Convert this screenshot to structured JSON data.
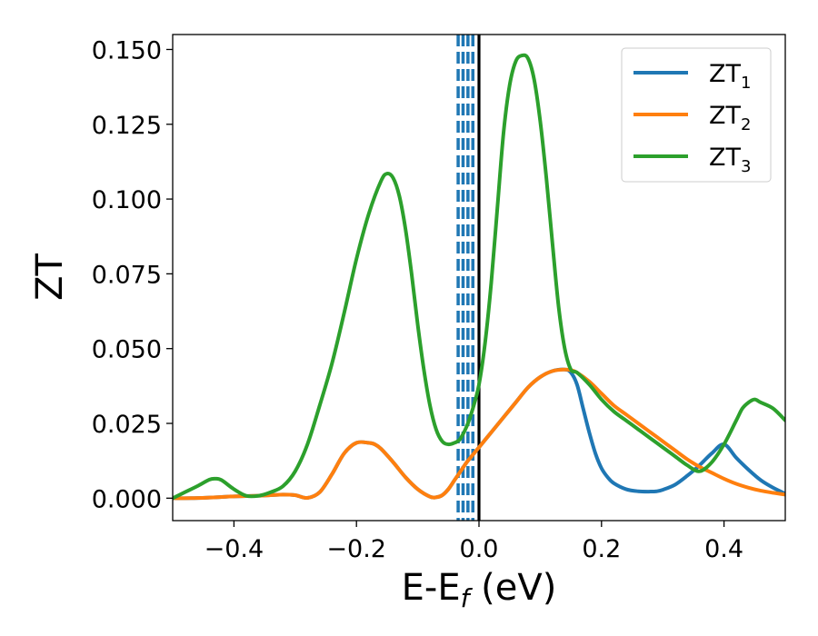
{
  "chart_data": {
    "type": "line",
    "xlabel": {
      "main": "E-E",
      "sub": "f",
      "tail": " (eV)"
    },
    "ylabel": "ZT",
    "xlim": [
      -0.5,
      0.5
    ],
    "ylim": [
      -0.0075,
      0.155
    ],
    "xticks": [
      -0.4,
      -0.2,
      0.0,
      0.2,
      0.4
    ],
    "xtick_labels": [
      "−0.4",
      "−0.2",
      "0.0",
      "0.2",
      "0.4"
    ],
    "yticks": [
      0.0,
      0.025,
      0.05,
      0.075,
      0.1,
      0.125,
      0.15
    ],
    "ytick_labels": [
      "0.000",
      "0.025",
      "0.050",
      "0.075",
      "0.100",
      "0.125",
      "0.150"
    ],
    "grid": false,
    "legend": "top-right",
    "vlines": [
      {
        "x": -0.034,
        "color": "#1f77b4",
        "style": "dashed"
      },
      {
        "x": -0.026,
        "color": "#1f77b4",
        "style": "dashed"
      },
      {
        "x": -0.018,
        "color": "#1f77b4",
        "style": "dashed"
      },
      {
        "x": -0.01,
        "color": "#1f77b4",
        "style": "dashed"
      },
      {
        "x": 0.0,
        "color": "#000000",
        "style": "solid"
      }
    ],
    "series": [
      {
        "name": "ZT",
        "sub": "1",
        "color": "#1f77b4",
        "x": [
          -0.5,
          -0.47,
          -0.44,
          -0.42,
          -0.4,
          -0.38,
          -0.36,
          -0.34,
          -0.32,
          -0.3,
          -0.28,
          -0.26,
          -0.24,
          -0.22,
          -0.2,
          -0.18,
          -0.17,
          -0.16,
          -0.14,
          -0.12,
          -0.1,
          -0.08,
          -0.07,
          -0.06,
          -0.05,
          -0.04,
          -0.03,
          -0.02,
          -0.01,
          0.0,
          0.02,
          0.04,
          0.06,
          0.08,
          0.1,
          0.12,
          0.14,
          0.15,
          0.16,
          0.17,
          0.18,
          0.19,
          0.2,
          0.21,
          0.22,
          0.24,
          0.26,
          0.28,
          0.29,
          0.3,
          0.32,
          0.34,
          0.36,
          0.38,
          0.4,
          0.42,
          0.44,
          0.46,
          0.48,
          0.5
        ],
        "y": [
          0.0,
          0.0,
          0.0002,
          0.0004,
          0.0006,
          0.0007,
          0.0008,
          0.001,
          0.0012,
          0.001,
          0.0001,
          0.002,
          0.008,
          0.015,
          0.0185,
          0.0185,
          0.018,
          0.0165,
          0.012,
          0.007,
          0.003,
          0.0005,
          0.0003,
          0.001,
          0.003,
          0.006,
          0.009,
          0.012,
          0.0145,
          0.017,
          0.022,
          0.027,
          0.032,
          0.037,
          0.0405,
          0.0425,
          0.043,
          0.042,
          0.038,
          0.03,
          0.022,
          0.015,
          0.01,
          0.007,
          0.005,
          0.003,
          0.0023,
          0.0022,
          0.0023,
          0.0028,
          0.0045,
          0.0075,
          0.011,
          0.015,
          0.018,
          0.0135,
          0.0095,
          0.006,
          0.0035,
          0.0015
        ]
      },
      {
        "name": "ZT",
        "sub": "2",
        "color": "#ff7f0e",
        "x": [
          -0.5,
          -0.47,
          -0.44,
          -0.42,
          -0.4,
          -0.38,
          -0.36,
          -0.34,
          -0.32,
          -0.3,
          -0.28,
          -0.26,
          -0.24,
          -0.22,
          -0.2,
          -0.18,
          -0.17,
          -0.16,
          -0.14,
          -0.12,
          -0.1,
          -0.08,
          -0.07,
          -0.06,
          -0.05,
          -0.04,
          -0.03,
          -0.02,
          -0.01,
          0.0,
          0.02,
          0.04,
          0.06,
          0.08,
          0.1,
          0.12,
          0.14,
          0.15,
          0.16,
          0.18,
          0.2,
          0.22,
          0.24,
          0.26,
          0.28,
          0.3,
          0.32,
          0.34,
          0.36,
          0.38,
          0.4,
          0.42,
          0.44,
          0.46,
          0.48,
          0.5
        ],
        "y": [
          0.0,
          0.0,
          0.0002,
          0.0004,
          0.0006,
          0.0007,
          0.0008,
          0.001,
          0.0012,
          0.001,
          0.0001,
          0.002,
          0.008,
          0.015,
          0.0185,
          0.0185,
          0.018,
          0.0165,
          0.012,
          0.007,
          0.003,
          0.0005,
          0.0003,
          0.001,
          0.003,
          0.006,
          0.009,
          0.012,
          0.0145,
          0.017,
          0.022,
          0.027,
          0.032,
          0.037,
          0.0405,
          0.0425,
          0.043,
          0.0428,
          0.042,
          0.039,
          0.035,
          0.031,
          0.028,
          0.025,
          0.022,
          0.019,
          0.016,
          0.013,
          0.0105,
          0.0085,
          0.0065,
          0.0048,
          0.0035,
          0.0025,
          0.0018,
          0.0012
        ]
      },
      {
        "name": "ZT",
        "sub": "3",
        "color": "#2ca02c",
        "x": [
          -0.5,
          -0.48,
          -0.46,
          -0.44,
          -0.43,
          -0.42,
          -0.4,
          -0.38,
          -0.36,
          -0.34,
          -0.32,
          -0.3,
          -0.28,
          -0.26,
          -0.24,
          -0.22,
          -0.2,
          -0.18,
          -0.16,
          -0.15,
          -0.14,
          -0.13,
          -0.12,
          -0.11,
          -0.1,
          -0.09,
          -0.08,
          -0.07,
          -0.06,
          -0.05,
          -0.04,
          -0.035,
          -0.03,
          -0.02,
          -0.01,
          0.0,
          0.01,
          0.02,
          0.03,
          0.04,
          0.05,
          0.06,
          0.07,
          0.08,
          0.09,
          0.1,
          0.11,
          0.12,
          0.13,
          0.14,
          0.15,
          0.16,
          0.18,
          0.2,
          0.22,
          0.24,
          0.26,
          0.28,
          0.3,
          0.32,
          0.34,
          0.36,
          0.38,
          0.4,
          0.42,
          0.43,
          0.44,
          0.45,
          0.46,
          0.48,
          0.5
        ],
        "y": [
          0.0,
          0.002,
          0.004,
          0.0062,
          0.0065,
          0.006,
          0.003,
          0.0008,
          0.0008,
          0.002,
          0.004,
          0.009,
          0.018,
          0.031,
          0.045,
          0.062,
          0.08,
          0.095,
          0.106,
          0.1085,
          0.107,
          0.101,
          0.09,
          0.075,
          0.058,
          0.043,
          0.031,
          0.023,
          0.019,
          0.018,
          0.0185,
          0.019,
          0.02,
          0.024,
          0.03,
          0.038,
          0.052,
          0.072,
          0.097,
          0.122,
          0.138,
          0.146,
          0.148,
          0.147,
          0.14,
          0.126,
          0.107,
          0.085,
          0.064,
          0.05,
          0.043,
          0.042,
          0.038,
          0.033,
          0.029,
          0.026,
          0.023,
          0.02,
          0.017,
          0.014,
          0.011,
          0.009,
          0.012,
          0.018,
          0.026,
          0.03,
          0.032,
          0.033,
          0.032,
          0.03,
          0.026
        ]
      }
    ]
  }
}
